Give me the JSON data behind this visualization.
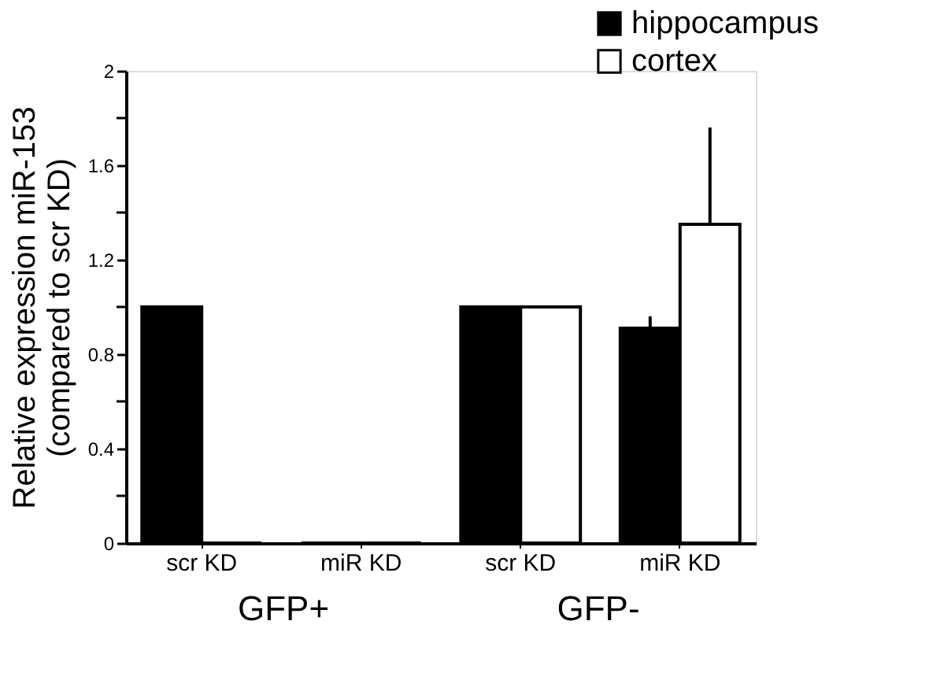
{
  "chart_data": {
    "type": "bar",
    "ylabel": "Relative expression miR-153\n(compared to scr KD)",
    "categories": [
      "scr KD",
      "miR KD",
      "scr KD",
      "miR KD"
    ],
    "series": [
      {
        "name": "hippocampus",
        "color": "#000000",
        "values": [
          1.0,
          0.0,
          1.0,
          0.91
        ],
        "errors": [
          null,
          null,
          null,
          [
            0.91,
            0.96
          ]
        ]
      },
      {
        "name": "cortex",
        "color": "#ffffff",
        "values": [
          0.0,
          0.0,
          1.0,
          1.35
        ],
        "errors": [
          null,
          null,
          null,
          [
            1.35,
            1.76
          ]
        ]
      }
    ],
    "ylim": [
      0,
      2
    ],
    "yticks": [
      0,
      {
        "value": 0.2,
        "label": null
      },
      0.4,
      {
        "value": 0.6,
        "label": null
      },
      0.8,
      {
        "value": 1.0,
        "label": null
      },
      1.2,
      {
        "value": 1.4,
        "label": null
      },
      1.6,
      {
        "value": 1.8,
        "label": null
      },
      2
    ],
    "annotations": [
      "GFP+",
      "GFP-"
    ],
    "legend": "top right",
    "grid": false
  }
}
